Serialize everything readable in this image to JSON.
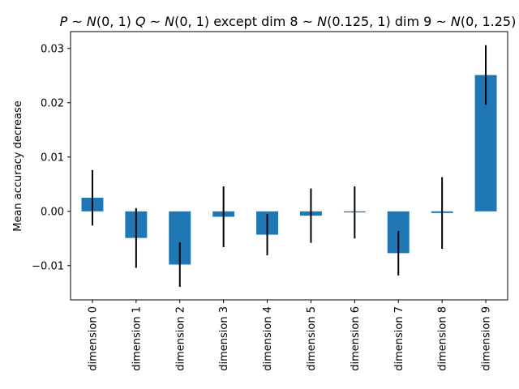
{
  "chart_data": {
    "type": "bar",
    "title": {
      "parts": [
        {
          "text": "P",
          "italic": true
        },
        {
          "text": " ~ ",
          "italic": false
        },
        {
          "text": "N",
          "italic": true
        },
        {
          "text": "(0, 1)   ",
          "italic": false
        },
        {
          "text": "Q",
          "italic": true
        },
        {
          "text": " ~ ",
          "italic": false
        },
        {
          "text": "N",
          "italic": true
        },
        {
          "text": "(0, 1) except dim 8 ~ ",
          "italic": false
        },
        {
          "text": "N",
          "italic": true
        },
        {
          "text": "(0.125, 1) dim 9 ~ ",
          "italic": false
        },
        {
          "text": "N",
          "italic": true
        },
        {
          "text": "(0, 1.25)",
          "italic": false
        }
      ]
    },
    "xlabel": "",
    "ylabel": "Mean accuracy decrease",
    "categories": [
      "dimension 0",
      "dimension 1",
      "dimension 2",
      "dimension 3",
      "dimension 4",
      "dimension 5",
      "dimension 6",
      "dimension 7",
      "dimension 8",
      "dimension 9"
    ],
    "values": [
      0.0025,
      -0.0049,
      -0.0098,
      -0.001,
      -0.0043,
      -0.0008,
      -0.0002,
      -0.0077,
      -0.0003,
      0.0251
    ],
    "errors": [
      0.0051,
      0.0055,
      0.0041,
      0.0056,
      0.0038,
      0.005,
      0.0048,
      0.0041,
      0.0066,
      0.0055
    ],
    "yticks": [
      -0.01,
      0.0,
      0.01,
      0.02,
      0.03
    ],
    "ytick_labels": [
      "−0.01",
      "0.00",
      "0.01",
      "0.02",
      "0.03"
    ],
    "ylim": [
      -0.0163,
      0.0331
    ],
    "grid": false,
    "legend": "none",
    "colors": {
      "bar": "#1f77b4",
      "errorbar": "#000000",
      "axis": "#000000"
    }
  }
}
